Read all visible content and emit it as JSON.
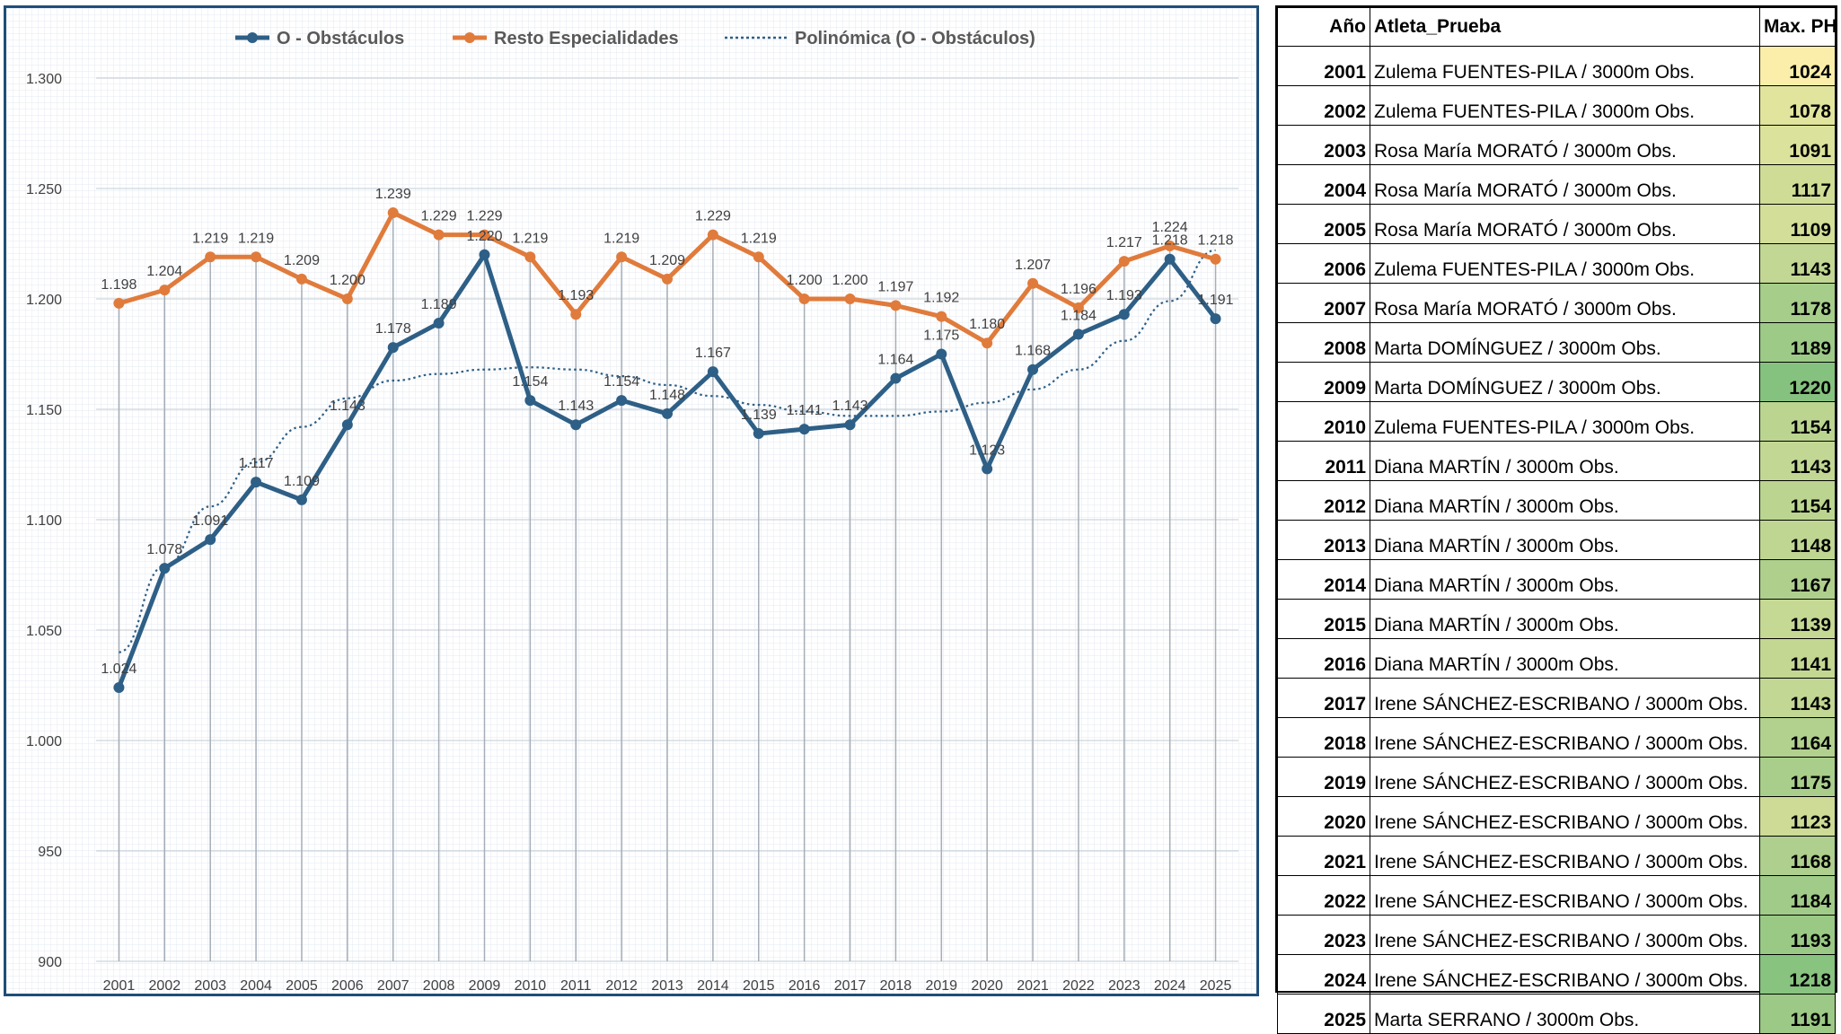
{
  "chart_data": {
    "type": "line",
    "categories": [
      "2001",
      "2002",
      "2003",
      "2004",
      "2005",
      "2006",
      "2007",
      "2008",
      "2009",
      "2010",
      "2011",
      "2012",
      "2013",
      "2014",
      "2015",
      "2016",
      "2017",
      "2018",
      "2019",
      "2020",
      "2021",
      "2022",
      "2023",
      "2024",
      "2025"
    ],
    "series": [
      {
        "name": "O - Obstáculos",
        "color": "#2e5f86",
        "values": [
          1024,
          1078,
          1091,
          1117,
          1109,
          1143,
          1178,
          1189,
          1220,
          1154,
          1143,
          1154,
          1148,
          1167,
          1139,
          1141,
          1143,
          1164,
          1175,
          1123,
          1168,
          1184,
          1193,
          1218,
          1191
        ],
        "labels": [
          "1.024",
          "1.078",
          "1.091",
          "1.117",
          "1.109",
          "1.143",
          "1.178",
          "1.189",
          "1.220",
          "1.154",
          "1.143",
          "1.154",
          "1.148",
          "1.167",
          "1.139",
          "1.141",
          "1.143",
          "1.164",
          "1.175",
          "1.123",
          "1.168",
          "1.184",
          "1.193",
          "1.218",
          "1.191"
        ]
      },
      {
        "name": "Resto Especialidades",
        "color": "#e07b3c",
        "values": [
          1198,
          1204,
          1219,
          1219,
          1209,
          1200,
          1239,
          1229,
          1229,
          1219,
          1193,
          1219,
          1209,
          1229,
          1219,
          1200,
          1200,
          1197,
          1192,
          1180,
          1207,
          1196,
          1217,
          1224,
          1218
        ],
        "labels": [
          "1.198",
          "1.204",
          "1.219",
          "1.219",
          "1.209",
          "1.200",
          "1.239",
          "1.229",
          "1.229",
          "1.219",
          "1.193",
          "1.219",
          "1.209",
          "1.229",
          "1.219",
          "1.200",
          "1.200",
          "1.197",
          "1.192",
          "1.180",
          "1.207",
          "1.196",
          "1.217",
          "1.224",
          "1.218"
        ]
      }
    ],
    "trendline": {
      "name": "Polinómica (O - Obstáculos)",
      "color": "#2e5f86",
      "style": "dotted",
      "values": [
        1040,
        1079,
        1106,
        1126,
        1142,
        1155,
        1163,
        1166,
        1168,
        1169,
        1168,
        1165,
        1161,
        1156,
        1152,
        1149,
        1147,
        1147,
        1149,
        1153,
        1159,
        1168,
        1181,
        1199,
        1222
      ]
    },
    "ylim": [
      900,
      1300
    ],
    "yticks": [
      900,
      950,
      1000,
      1050,
      1100,
      1150,
      1200,
      1250,
      1300
    ],
    "ytick_labels": [
      "900",
      "950",
      "1.000",
      "1.050",
      "1.100",
      "1.150",
      "1.200",
      "1.250",
      "1.300"
    ],
    "legend_position": "top-center",
    "grid": true,
    "title": "",
    "xlabel": "",
    "ylabel": ""
  },
  "table": {
    "headers": {
      "year": "Año",
      "athlete": "Atleta_Prueba",
      "ph": "Max. PH"
    },
    "rows": [
      {
        "year": "2001",
        "athlete": "Zulema FUENTES-PILA / 3000m Obs.",
        "ph": "1024",
        "color": "#fbeeaa"
      },
      {
        "year": "2002",
        "athlete": "Zulema FUENTES-PILA / 3000m Obs.",
        "ph": "1078",
        "color": "#e1e49d"
      },
      {
        "year": "2003",
        "athlete": "Rosa María MORATÓ / 3000m Obs.",
        "ph": "1091",
        "color": "#dbe29b"
      },
      {
        "year": "2004",
        "athlete": "Rosa María MORATÓ / 3000m Obs.",
        "ph": "1117",
        "color": "#cfdc96"
      },
      {
        "year": "2005",
        "athlete": "Rosa María MORATÓ / 3000m Obs.",
        "ph": "1109",
        "color": "#d3de98"
      },
      {
        "year": "2006",
        "athlete": "Zulema FUENTES-PILA / 3000m Obs.",
        "ph": "1143",
        "color": "#c2d793"
      },
      {
        "year": "2007",
        "athlete": "Rosa María MORATÓ / 3000m Obs.",
        "ph": "1178",
        "color": "#a6cd8a"
      },
      {
        "year": "2008",
        "athlete": "Marta DOMÍNGUEZ / 3000m Obs.",
        "ph": "1189",
        "color": "#9dca87"
      },
      {
        "year": "2009",
        "athlete": "Marta DOMÍNGUEZ / 3000m Obs.",
        "ph": "1220",
        "color": "#86c27f"
      },
      {
        "year": "2010",
        "athlete": "Zulema FUENTES-PILA / 3000m Obs.",
        "ph": "1154",
        "color": "#bbd591"
      },
      {
        "year": "2011",
        "athlete": "Diana MARTÍN / 3000m Obs.",
        "ph": "1143",
        "color": "#c2d793"
      },
      {
        "year": "2012",
        "athlete": "Diana MARTÍN / 3000m Obs.",
        "ph": "1154",
        "color": "#bbd591"
      },
      {
        "year": "2013",
        "athlete": "Diana MARTÍN / 3000m Obs.",
        "ph": "1148",
        "color": "#bfd692"
      },
      {
        "year": "2014",
        "athlete": "Diana MARTÍN / 3000m Obs.",
        "ph": "1167",
        "color": "#afd08d"
      },
      {
        "year": "2015",
        "athlete": "Diana MARTÍN / 3000m Obs.",
        "ph": "1139",
        "color": "#c5d894"
      },
      {
        "year": "2016",
        "athlete": "Diana MARTÍN / 3000m Obs.",
        "ph": "1141",
        "color": "#c3d793"
      },
      {
        "year": "2017",
        "athlete": "Irene SÁNCHEZ-ESCRIBANO / 3000m Obs.",
        "ph": "1143",
        "color": "#c2d793"
      },
      {
        "year": "2018",
        "athlete": "Irene SÁNCHEZ-ESCRIBANO / 3000m Obs.",
        "ph": "1164",
        "color": "#b2d18e"
      },
      {
        "year": "2019",
        "athlete": "Irene SÁNCHEZ-ESCRIBANO / 3000m Obs.",
        "ph": "1175",
        "color": "#a9ce8b"
      },
      {
        "year": "2020",
        "athlete": "Irene SÁNCHEZ-ESCRIBANO / 3000m Obs.",
        "ph": "1123",
        "color": "#cddb96"
      },
      {
        "year": "2021",
        "athlete": "Irene SÁNCHEZ-ESCRIBANO / 3000m Obs.",
        "ph": "1168",
        "color": "#aecf8d"
      },
      {
        "year": "2022",
        "athlete": "Irene SÁNCHEZ-ESCRIBANO / 3000m Obs.",
        "ph": "1184",
        "color": "#a1cb88"
      },
      {
        "year": "2023",
        "athlete": "Irene SÁNCHEZ-ESCRIBANO / 3000m Obs.",
        "ph": "1193",
        "color": "#9ac985"
      },
      {
        "year": "2024",
        "athlete": "Irene SÁNCHEZ-ESCRIBANO / 3000m Obs.",
        "ph": "1218",
        "color": "#88c380"
      },
      {
        "year": "2025",
        "athlete": "Marta SERRANO / 3000m Obs.",
        "ph": "1191",
        "color": "#9cc986"
      }
    ]
  }
}
